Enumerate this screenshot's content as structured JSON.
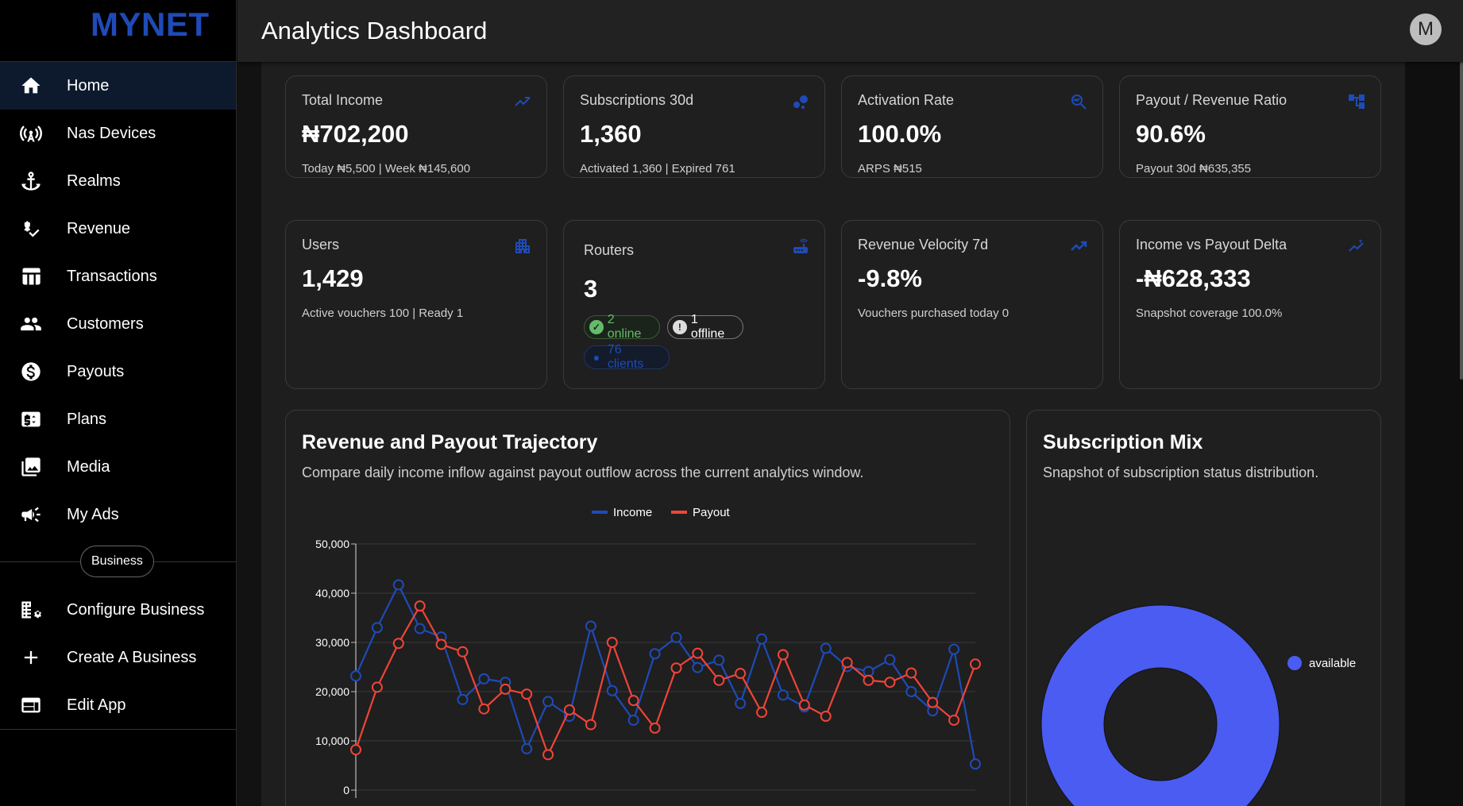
{
  "brand": {
    "logo": "MYNET"
  },
  "topbar": {
    "title": "Analytics Dashboard",
    "avatar_initial": "M"
  },
  "sidebar": {
    "items": [
      {
        "label": "Home",
        "icon": "home-icon",
        "active": true
      },
      {
        "label": "Nas Devices",
        "icon": "antenna-icon"
      },
      {
        "label": "Realms",
        "icon": "anchor-icon"
      },
      {
        "label": "Revenue",
        "icon": "price-check-icon"
      },
      {
        "label": "Transactions",
        "icon": "table-icon"
      },
      {
        "label": "Customers",
        "icon": "people-icon"
      },
      {
        "label": "Payouts",
        "icon": "dollar-circle-icon"
      },
      {
        "label": "Plans",
        "icon": "card-dollar-icon"
      },
      {
        "label": "Media",
        "icon": "photo-library-icon"
      },
      {
        "label": "My Ads",
        "icon": "campaign-icon"
      }
    ],
    "section_label": "Business",
    "business_items": [
      {
        "label": "Configure Business",
        "icon": "domain-settings-icon"
      },
      {
        "label": "Create A Business",
        "icon": "plus-icon"
      },
      {
        "label": "Edit App",
        "icon": "web-app-icon"
      }
    ]
  },
  "stats": {
    "total_income": {
      "title": "Total Income",
      "value": "₦702,200",
      "sub": "Today ₦5,500 | Week ₦145,600",
      "icon": "trending-up-icon"
    },
    "subscriptions": {
      "title": "Subscriptions 30d",
      "value": "1,360",
      "sub": "Activated 1,360 | Expired 761",
      "icon": "bubbles-icon"
    },
    "activation_rate": {
      "title": "Activation Rate",
      "value": "100.0%",
      "sub": "ARPS ₦515",
      "icon": "query-stats-icon"
    },
    "payout_ratio": {
      "title": "Payout / Revenue Ratio",
      "value": "90.6%",
      "sub": "Payout 30d ₦635,355",
      "icon": "account-tree-icon"
    },
    "users": {
      "title": "Users",
      "value": "1,429",
      "sub": "Active vouchers 100 | Ready 1",
      "icon": "building-icon"
    },
    "routers": {
      "title": "Routers",
      "value": "3",
      "online": "2 online",
      "offline": "1 offline",
      "clients": "76 clients",
      "icon": "router-icon"
    },
    "revenue_velocity": {
      "title": "Revenue Velocity 7d",
      "value": "-9.8%",
      "sub": "Vouchers purchased today 0",
      "icon": "trending-up-icon"
    },
    "income_delta": {
      "title": "Income vs Payout Delta",
      "value": "-₦628,333",
      "sub": "Snapshot coverage 100.0%",
      "icon": "insights-icon"
    }
  },
  "trajectory": {
    "title": "Revenue and Payout Trajectory",
    "subtitle": "Compare daily income inflow against payout outflow across the current analytics window."
  },
  "mix": {
    "title": "Subscription Mix",
    "subtitle": "Snapshot of subscription status distribution."
  },
  "colors": {
    "income": "#1e4bb8",
    "payout": "#f04438",
    "accent": "#1e4bb8",
    "donut": "#4a5cf2"
  },
  "chart_data": [
    {
      "type": "line",
      "ylim": [
        0,
        50000
      ],
      "y_ticks": [
        "0",
        "10,000",
        "20,000",
        "30,000",
        "40,000",
        "50,000"
      ],
      "legend": "top-center",
      "grid": true,
      "series": [
        {
          "name": "Income",
          "color": "#1e4bb8",
          "values": [
            23200,
            33000,
            41700,
            32800,
            31100,
            18400,
            22600,
            21900,
            8400,
            18000,
            15000,
            33300,
            20200,
            14200,
            27700,
            31000,
            24900,
            26400,
            17600,
            30700,
            19300,
            16900,
            28800,
            25100,
            24100,
            26500,
            20000,
            16100,
            28600,
            5300
          ]
        },
        {
          "name": "Payout",
          "color": "#f04438",
          "values": [
            8200,
            20900,
            29800,
            37400,
            29600,
            28100,
            16500,
            20500,
            19500,
            7200,
            16300,
            13300,
            30000,
            18200,
            12600,
            24800,
            27800,
            22300,
            23700,
            15800,
            27500,
            17300,
            15000,
            25900,
            22300,
            21900,
            23800,
            17800,
            14200,
            25600
          ]
        }
      ]
    },
    {
      "type": "pie",
      "donut": true,
      "legend": "right",
      "slices": [
        {
          "label": "available",
          "value": 100,
          "color": "#4a5cf2"
        }
      ]
    }
  ]
}
